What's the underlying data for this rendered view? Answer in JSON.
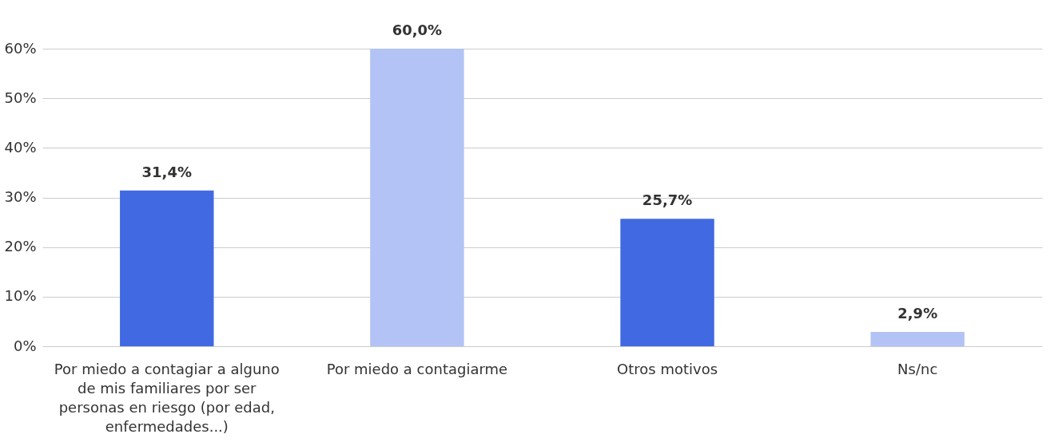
{
  "chart_data": {
    "type": "bar",
    "categories": [
      "Por miedo a contagiar a alguno de mis familiares por ser personas en riesgo (por edad, enfermedades...)",
      "Por miedo a contagiarme",
      "Otros motivos",
      "Ns/nc"
    ],
    "values": [
      31.4,
      60.0,
      25.7,
      2.9
    ],
    "colors": [
      "#4169e1",
      "#b3c3f5",
      "#4169e1",
      "#b3c3f5"
    ],
    "value_labels": [
      "31,4%",
      "60,0%",
      "25,7%",
      "2,9%"
    ],
    "ylim": [
      0,
      60
    ],
    "yticks": [
      {
        "value": 0,
        "label": "0%"
      },
      {
        "value": 10,
        "label": "10%"
      },
      {
        "value": 20,
        "label": "20%"
      },
      {
        "value": 30,
        "label": "30%"
      },
      {
        "value": 40,
        "label": "40%"
      },
      {
        "value": 50,
        "label": "50%"
      },
      {
        "value": 60,
        "label": "60%"
      }
    ],
    "grid": "y"
  }
}
